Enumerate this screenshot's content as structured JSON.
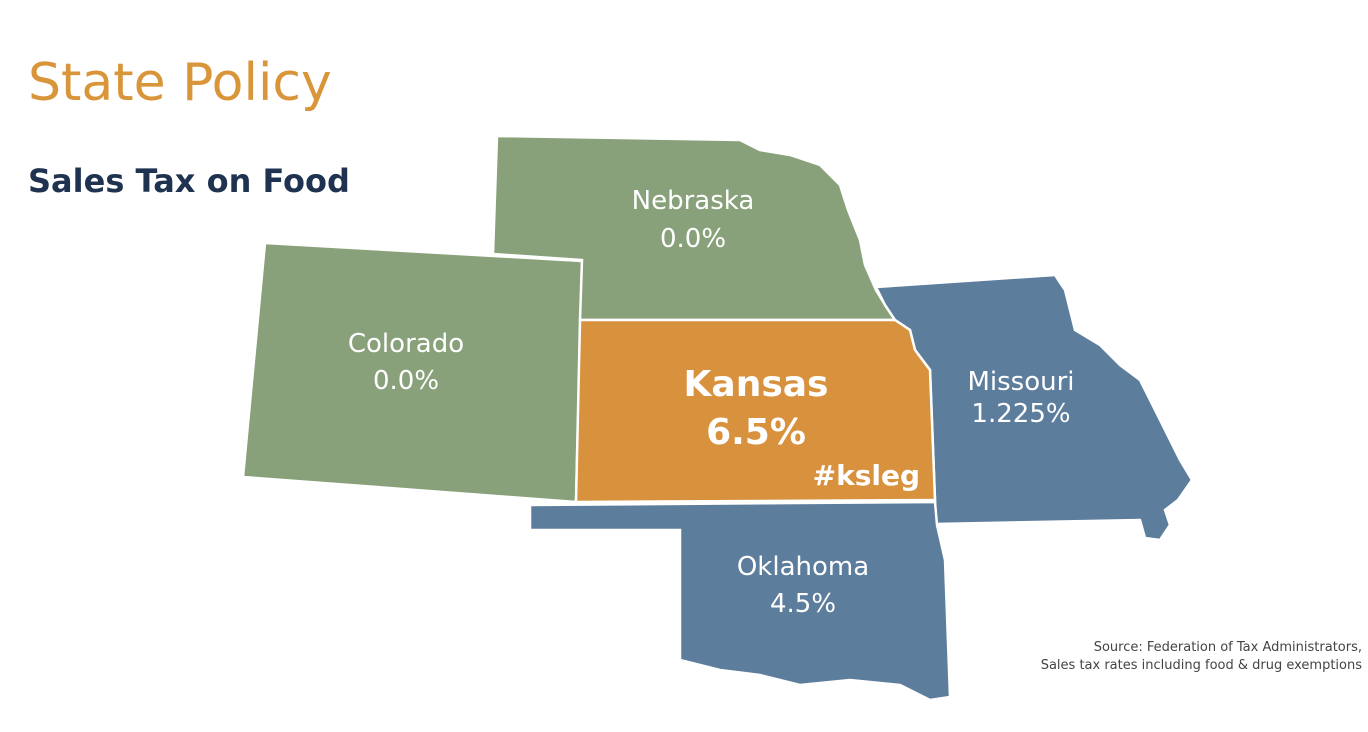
{
  "header": {
    "title": "State Policy",
    "subtitle": "Sales Tax on Food"
  },
  "states": [
    {
      "name": "Nebraska",
      "rate": "0.0%"
    },
    {
      "name": "Colorado",
      "rate": "0.0%"
    },
    {
      "name": "Kansas",
      "rate": "6.5%"
    },
    {
      "name": "Missouri",
      "rate": "1.225%"
    },
    {
      "name": "Oklahoma",
      "rate": "4.5%"
    }
  ],
  "hashtag": "#ksleg",
  "source": [
    "Source: Federation of Tax Administrators,",
    "Sales tax rates including food & drug exemptions"
  ]
}
